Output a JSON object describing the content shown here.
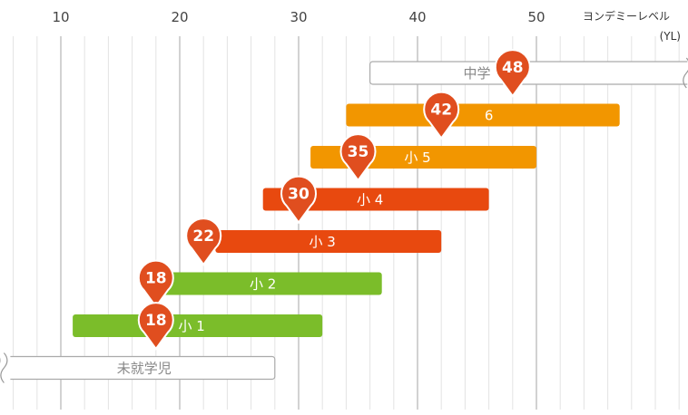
{
  "chart_data": {
    "type": "bar",
    "orientation": "horizontal-range",
    "xlabel": "ヨンデミーレベル",
    "xunit": "(YL)",
    "xlim": [
      4,
      63
    ],
    "xticks": [
      10,
      20,
      30,
      40,
      50
    ],
    "minor_step": 2,
    "grid": true,
    "series": [
      {
        "label": "中学",
        "start": 36,
        "end": 63,
        "open_end": true,
        "style": "outline",
        "color": "#aaaaaa",
        "marker": 48,
        "label_at": 45
      },
      {
        "label": "6",
        "start": 34,
        "end": 57,
        "style": "solid",
        "color": "#f29600",
        "marker": 42,
        "label_at": 46
      },
      {
        "label": "小 5",
        "start": 31,
        "end": 50,
        "style": "solid",
        "color": "#f29600",
        "marker": 35,
        "label_at": 40
      },
      {
        "label": "小 4",
        "start": 27,
        "end": 46,
        "style": "solid",
        "color": "#e8490f",
        "marker": 30,
        "label_at": 36
      },
      {
        "label": "小 3",
        "start": 23,
        "end": 42,
        "style": "solid",
        "color": "#e8490f",
        "marker": 22,
        "label_at": 32
      },
      {
        "label": "小 2",
        "start": 18,
        "end": 37,
        "style": "solid",
        "color": "#7bbd2a",
        "marker": 18,
        "label_at": 27
      },
      {
        "label": "小 1",
        "start": 11,
        "end": 32,
        "style": "solid",
        "color": "#7bbd2a",
        "marker": 18,
        "label_at": 21
      },
      {
        "label": "未就学児",
        "start": 4,
        "end": 28,
        "open_start": true,
        "style": "outline",
        "color": "#aaaaaa",
        "label_at": 17
      }
    ],
    "marker_color": "#e04e1f"
  }
}
